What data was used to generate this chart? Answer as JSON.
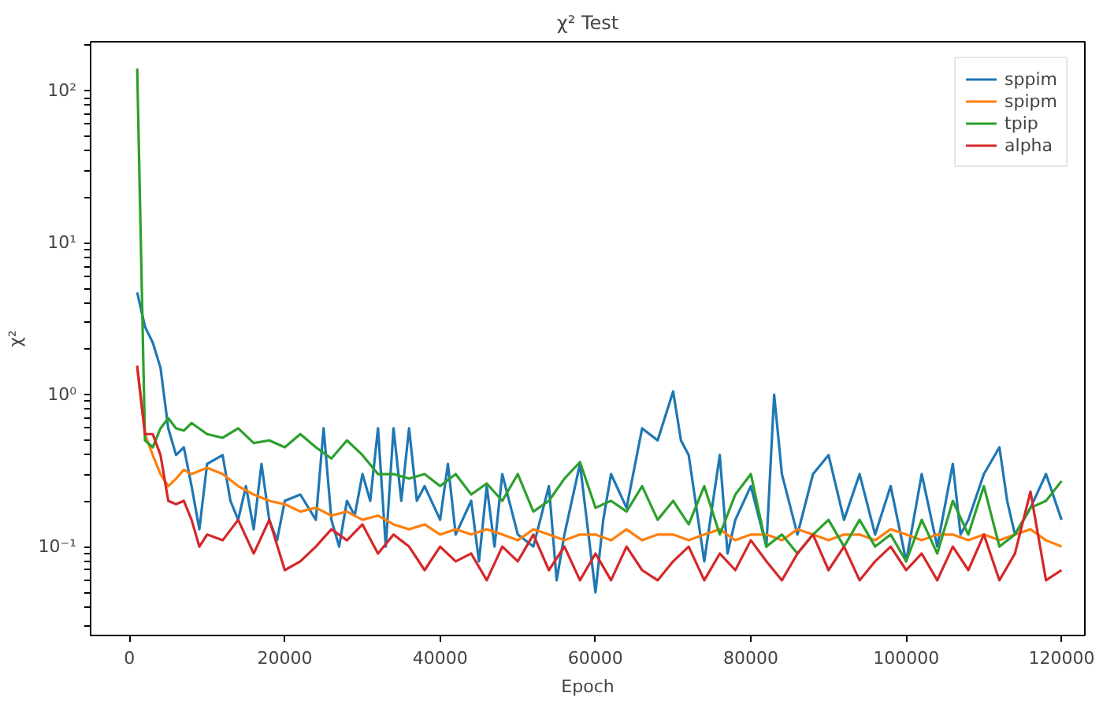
{
  "chart_data": {
    "type": "line",
    "title": "χ² Test",
    "xlabel": "Epoch",
    "ylabel": "χ²",
    "log": "y",
    "grid": false,
    "legend": "top right",
    "marker": "none",
    "line_style": "solid",
    "xlim": [
      -5000,
      123000
    ],
    "xticks": [
      0,
      20000,
      40000,
      60000,
      80000,
      100000,
      120000
    ],
    "ylim": [
      0.026,
      210
    ],
    "yticks": [
      {
        "value": 0.1,
        "label": "10⁻¹"
      },
      {
        "value": 1,
        "label": "10⁰"
      },
      {
        "value": 10,
        "label": "10¹"
      },
      {
        "value": 100,
        "label": "10²"
      }
    ],
    "series": [
      {
        "name": "sppim",
        "color": "#1f77b4",
        "x": [
          1000,
          2000,
          3000,
          4000,
          5000,
          6000,
          7000,
          8000,
          9000,
          10000,
          12000,
          13000,
          14000,
          15000,
          16000,
          17000,
          18000,
          19000,
          20000,
          22000,
          24000,
          25000,
          26000,
          27000,
          28000,
          29000,
          30000,
          31000,
          32000,
          33000,
          34000,
          35000,
          36000,
          37000,
          38000,
          40000,
          41000,
          42000,
          44000,
          45000,
          46000,
          47000,
          48000,
          50000,
          52000,
          54000,
          55000,
          56000,
          58000,
          60000,
          61000,
          62000,
          64000,
          66000,
          68000,
          70000,
          71000,
          72000,
          74000,
          76000,
          77000,
          78000,
          80000,
          82000,
          83000,
          84000,
          86000,
          88000,
          90000,
          92000,
          94000,
          96000,
          98000,
          100000,
          102000,
          104000,
          106000,
          107000,
          108000,
          110000,
          112000,
          113000,
          114000,
          116000,
          118000,
          120000
        ],
        "values": [
          4.7,
          2.8,
          2.2,
          1.5,
          0.6,
          0.4,
          0.45,
          0.25,
          0.13,
          0.35,
          0.4,
          0.2,
          0.15,
          0.25,
          0.13,
          0.35,
          0.15,
          0.11,
          0.2,
          0.22,
          0.15,
          0.6,
          0.15,
          0.1,
          0.2,
          0.16,
          0.3,
          0.2,
          0.6,
          0.1,
          0.6,
          0.2,
          0.6,
          0.2,
          0.25,
          0.15,
          0.35,
          0.12,
          0.2,
          0.08,
          0.25,
          0.1,
          0.3,
          0.12,
          0.1,
          0.25,
          0.06,
          0.12,
          0.35,
          0.05,
          0.15,
          0.3,
          0.18,
          0.6,
          0.5,
          1.05,
          0.5,
          0.4,
          0.08,
          0.4,
          0.09,
          0.15,
          0.25,
          0.1,
          1.0,
          0.3,
          0.12,
          0.3,
          0.4,
          0.15,
          0.3,
          0.12,
          0.25,
          0.08,
          0.3,
          0.1,
          0.35,
          0.12,
          0.15,
          0.3,
          0.45,
          0.2,
          0.12,
          0.18,
          0.3,
          0.15
        ]
      },
      {
        "name": "spipm",
        "color": "#ff7f0e",
        "x": [
          1000,
          2000,
          3000,
          4000,
          5000,
          6000,
          7000,
          8000,
          10000,
          12000,
          14000,
          16000,
          18000,
          20000,
          22000,
          24000,
          26000,
          28000,
          30000,
          32000,
          34000,
          36000,
          38000,
          40000,
          42000,
          44000,
          46000,
          48000,
          50000,
          52000,
          54000,
          56000,
          58000,
          60000,
          62000,
          64000,
          66000,
          68000,
          70000,
          72000,
          74000,
          76000,
          78000,
          80000,
          82000,
          84000,
          86000,
          88000,
          90000,
          92000,
          94000,
          96000,
          98000,
          100000,
          102000,
          104000,
          106000,
          108000,
          110000,
          112000,
          114000,
          116000,
          118000,
          120000
        ],
        "values": [
          1.5,
          0.55,
          0.4,
          0.3,
          0.25,
          0.28,
          0.32,
          0.3,
          0.33,
          0.3,
          0.25,
          0.22,
          0.2,
          0.19,
          0.17,
          0.18,
          0.16,
          0.17,
          0.15,
          0.16,
          0.14,
          0.13,
          0.14,
          0.12,
          0.13,
          0.12,
          0.13,
          0.12,
          0.11,
          0.13,
          0.12,
          0.11,
          0.12,
          0.12,
          0.11,
          0.13,
          0.11,
          0.12,
          0.12,
          0.11,
          0.12,
          0.13,
          0.11,
          0.12,
          0.12,
          0.11,
          0.13,
          0.12,
          0.11,
          0.12,
          0.12,
          0.11,
          0.13,
          0.12,
          0.11,
          0.12,
          0.12,
          0.11,
          0.12,
          0.11,
          0.12,
          0.13,
          0.11,
          0.1
        ]
      },
      {
        "name": "tpip",
        "color": "#2ca02c",
        "x": [
          1000,
          2000,
          3000,
          4000,
          5000,
          6000,
          7000,
          8000,
          10000,
          12000,
          14000,
          16000,
          18000,
          20000,
          22000,
          24000,
          26000,
          28000,
          30000,
          32000,
          34000,
          36000,
          38000,
          40000,
          42000,
          44000,
          46000,
          48000,
          50000,
          52000,
          54000,
          56000,
          58000,
          60000,
          62000,
          64000,
          66000,
          68000,
          70000,
          72000,
          74000,
          76000,
          78000,
          80000,
          82000,
          84000,
          86000,
          88000,
          90000,
          92000,
          94000,
          96000,
          98000,
          100000,
          102000,
          104000,
          106000,
          108000,
          110000,
          112000,
          114000,
          116000,
          118000,
          120000
        ],
        "values": [
          140,
          0.5,
          0.45,
          0.6,
          0.7,
          0.6,
          0.58,
          0.65,
          0.55,
          0.52,
          0.6,
          0.48,
          0.5,
          0.45,
          0.55,
          0.45,
          0.38,
          0.5,
          0.4,
          0.3,
          0.3,
          0.28,
          0.3,
          0.25,
          0.3,
          0.22,
          0.26,
          0.2,
          0.3,
          0.17,
          0.2,
          0.28,
          0.36,
          0.18,
          0.2,
          0.17,
          0.25,
          0.15,
          0.2,
          0.14,
          0.25,
          0.12,
          0.22,
          0.3,
          0.1,
          0.12,
          0.09,
          0.12,
          0.15,
          0.1,
          0.15,
          0.1,
          0.12,
          0.08,
          0.15,
          0.09,
          0.2,
          0.12,
          0.25,
          0.1,
          0.12,
          0.18,
          0.2,
          0.27
        ]
      },
      {
        "name": "alpha",
        "color": "#d62728",
        "x": [
          1000,
          2000,
          3000,
          4000,
          5000,
          6000,
          7000,
          8000,
          9000,
          10000,
          12000,
          14000,
          16000,
          18000,
          20000,
          22000,
          24000,
          26000,
          28000,
          30000,
          32000,
          34000,
          36000,
          38000,
          40000,
          42000,
          44000,
          46000,
          48000,
          50000,
          52000,
          54000,
          56000,
          58000,
          60000,
          62000,
          64000,
          66000,
          68000,
          70000,
          72000,
          74000,
          76000,
          78000,
          80000,
          82000,
          84000,
          86000,
          88000,
          90000,
          92000,
          94000,
          96000,
          98000,
          100000,
          102000,
          104000,
          106000,
          108000,
          110000,
          112000,
          114000,
          116000,
          118000,
          120000
        ],
        "values": [
          1.55,
          0.55,
          0.55,
          0.4,
          0.2,
          0.19,
          0.2,
          0.15,
          0.1,
          0.12,
          0.11,
          0.15,
          0.09,
          0.15,
          0.07,
          0.08,
          0.1,
          0.13,
          0.11,
          0.14,
          0.09,
          0.12,
          0.1,
          0.07,
          0.1,
          0.08,
          0.09,
          0.06,
          0.1,
          0.08,
          0.12,
          0.07,
          0.1,
          0.06,
          0.09,
          0.06,
          0.1,
          0.07,
          0.06,
          0.08,
          0.1,
          0.06,
          0.09,
          0.07,
          0.11,
          0.08,
          0.06,
          0.09,
          0.12,
          0.07,
          0.1,
          0.06,
          0.08,
          0.1,
          0.07,
          0.09,
          0.06,
          0.1,
          0.07,
          0.12,
          0.06,
          0.09,
          0.23,
          0.06,
          0.07
        ]
      }
    ]
  }
}
